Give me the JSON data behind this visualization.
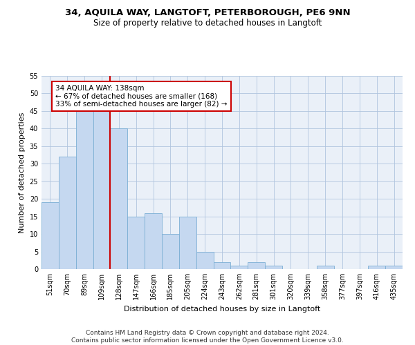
{
  "title_line1": "34, AQUILA WAY, LANGTOFT, PETERBOROUGH, PE6 9NN",
  "title_line2": "Size of property relative to detached houses in Langtoft",
  "xlabel": "Distribution of detached houses by size in Langtoft",
  "ylabel": "Number of detached properties",
  "footnote": "Contains HM Land Registry data © Crown copyright and database right 2024.\nContains public sector information licensed under the Open Government Licence v3.0.",
  "categories": [
    "51sqm",
    "70sqm",
    "89sqm",
    "109sqm",
    "128sqm",
    "147sqm",
    "166sqm",
    "185sqm",
    "205sqm",
    "224sqm",
    "243sqm",
    "262sqm",
    "281sqm",
    "301sqm",
    "320sqm",
    "339sqm",
    "358sqm",
    "377sqm",
    "397sqm",
    "416sqm",
    "435sqm"
  ],
  "values": [
    19,
    32,
    45,
    46,
    40,
    15,
    16,
    10,
    15,
    5,
    2,
    1,
    2,
    1,
    0,
    0,
    1,
    0,
    0,
    1,
    1
  ],
  "bar_color": "#c5d8f0",
  "bar_edgecolor": "#7bafd4",
  "subject_line_index": 3.5,
  "annotation_text": "34 AQUILA WAY: 138sqm\n← 67% of detached houses are smaller (168)\n33% of semi-detached houses are larger (82) →",
  "annotation_box_color": "#ffffff",
  "annotation_box_edgecolor": "#cc0000",
  "vline_color": "#cc0000",
  "ylim": [
    0,
    55
  ],
  "yticks": [
    0,
    5,
    10,
    15,
    20,
    25,
    30,
    35,
    40,
    45,
    50,
    55
  ],
  "grid_color": "#b0c4de",
  "bg_color": "#eaf0f8",
  "title_fontsize": 9.5,
  "subtitle_fontsize": 8.5,
  "axis_label_fontsize": 8,
  "tick_fontsize": 7,
  "annotation_fontsize": 7.5,
  "footnote_fontsize": 6.5
}
